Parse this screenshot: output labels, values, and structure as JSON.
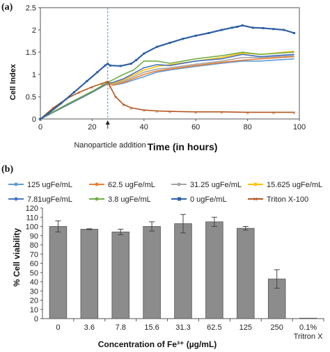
{
  "panel_a_label": "(a)",
  "panel_b_label": "(b)",
  "chart_data": [
    {
      "type": "line",
      "ylabel": "Cell Index",
      "xlabel": "Time (in hours)",
      "xlim": [
        0,
        100
      ],
      "ylim": [
        0,
        2.5
      ],
      "xticks": [
        "0",
        "20",
        "40",
        "60",
        "80",
        "100"
      ],
      "yticks": [
        "0",
        "0.5",
        "1",
        "1.5",
        "2",
        "2.5"
      ],
      "annotation": "Nanoparticle addition",
      "annotation_x": 26,
      "series": [
        {
          "name": "0 ugFe/mL",
          "color": "#2e5fa3",
          "x": [
            0,
            3,
            8,
            13,
            18,
            22,
            25,
            26,
            27,
            31,
            35,
            37,
            40,
            45,
            50,
            55,
            60,
            65,
            70,
            74,
            76,
            78,
            82,
            86,
            90,
            94,
            98
          ],
          "y": [
            0,
            0.12,
            0.35,
            0.6,
            0.85,
            1.05,
            1.2,
            1.24,
            1.2,
            1.19,
            1.24,
            1.32,
            1.47,
            1.62,
            1.71,
            1.8,
            1.87,
            1.93,
            2.0,
            2.05,
            2.07,
            2.1,
            2.05,
            2.04,
            2.02,
            2.0,
            1.93
          ]
        },
        {
          "name": "Triton X-100",
          "color": "#b5541f",
          "x": [
            0,
            5,
            10,
            15,
            20,
            24,
            26,
            27,
            29,
            32,
            35,
            40,
            45,
            50,
            60,
            70,
            80,
            90,
            98
          ],
          "y": [
            0,
            0.25,
            0.45,
            0.6,
            0.72,
            0.8,
            0.84,
            0.72,
            0.5,
            0.33,
            0.25,
            0.2,
            0.18,
            0.17,
            0.16,
            0.16,
            0.15,
            0.15,
            0.15
          ]
        },
        {
          "name": "125 ugFe/mL",
          "color": "#5b9bd5",
          "x": [
            0,
            10,
            20,
            26,
            28,
            32,
            40,
            45,
            50,
            60,
            70,
            78,
            85,
            98
          ],
          "y": [
            0,
            0.32,
            0.62,
            0.8,
            0.76,
            0.8,
            0.95,
            1.05,
            1.1,
            1.18,
            1.25,
            1.3,
            1.3,
            1.35
          ]
        },
        {
          "name": "62.5 ugFe/mL",
          "color": "#ed7d31",
          "x": [
            0,
            10,
            20,
            26,
            28,
            32,
            40,
            45,
            50,
            60,
            70,
            78,
            85,
            98
          ],
          "y": [
            0,
            0.3,
            0.6,
            0.79,
            0.76,
            0.82,
            1.0,
            1.08,
            1.12,
            1.2,
            1.27,
            1.32,
            1.35,
            1.4
          ]
        },
        {
          "name": "31.25 ugFe/mL",
          "color": "#a5a5a5",
          "x": [
            0,
            10,
            20,
            26,
            28,
            32,
            40,
            45,
            50,
            60,
            70,
            78,
            85,
            98
          ],
          "y": [
            0,
            0.3,
            0.6,
            0.8,
            0.78,
            0.85,
            1.05,
            1.12,
            1.15,
            1.23,
            1.3,
            1.38,
            1.38,
            1.42
          ]
        },
        {
          "name": "15.625 ugFe/mL",
          "color": "#ffc000",
          "x": [
            0,
            10,
            20,
            26,
            28,
            32,
            40,
            45,
            50,
            60,
            70,
            78,
            85,
            98
          ],
          "y": [
            0,
            0.3,
            0.6,
            0.8,
            0.8,
            0.88,
            1.1,
            1.18,
            1.22,
            1.3,
            1.38,
            1.48,
            1.45,
            1.52
          ]
        },
        {
          "name": "7.81ugFe/mL",
          "color": "#4472c4",
          "x": [
            0,
            10,
            20,
            26,
            28,
            32,
            40,
            45,
            50,
            60,
            70,
            78,
            85,
            98
          ],
          "y": [
            0,
            0.3,
            0.6,
            0.8,
            0.82,
            0.9,
            1.15,
            1.22,
            1.2,
            1.3,
            1.35,
            1.45,
            1.4,
            1.45
          ]
        },
        {
          "name": "3.8 ugFe/mL",
          "color": "#70ad47",
          "x": [
            0,
            10,
            20,
            26,
            28,
            32,
            36,
            40,
            45,
            50,
            60,
            70,
            78,
            85,
            98
          ],
          "y": [
            0,
            0.32,
            0.62,
            0.82,
            0.88,
            1.0,
            1.1,
            1.3,
            1.3,
            1.25,
            1.35,
            1.42,
            1.5,
            1.45,
            1.5
          ]
        }
      ]
    },
    {
      "type": "bar",
      "ylabel": "% Cell viability",
      "xlabel": "Concentration of Fe³⁺ (µg/mL)",
      "ylim": [
        0,
        120
      ],
      "yticks": [
        "0",
        "10",
        "20",
        "30",
        "40",
        "50",
        "60",
        "70",
        "80",
        "90",
        "100",
        "110",
        "120"
      ],
      "categories": [
        "0",
        "3.6",
        "7.8",
        "15.6",
        "31.3",
        "62.5",
        "125",
        "250",
        "0.1%\nTritron X"
      ],
      "values": [
        100,
        97,
        94,
        100,
        103,
        105,
        98,
        43,
        0.5
      ],
      "errors": [
        6,
        0.5,
        3,
        5,
        10,
        5,
        2,
        10,
        0
      ],
      "bar_color": "#8c8c8c"
    }
  ]
}
